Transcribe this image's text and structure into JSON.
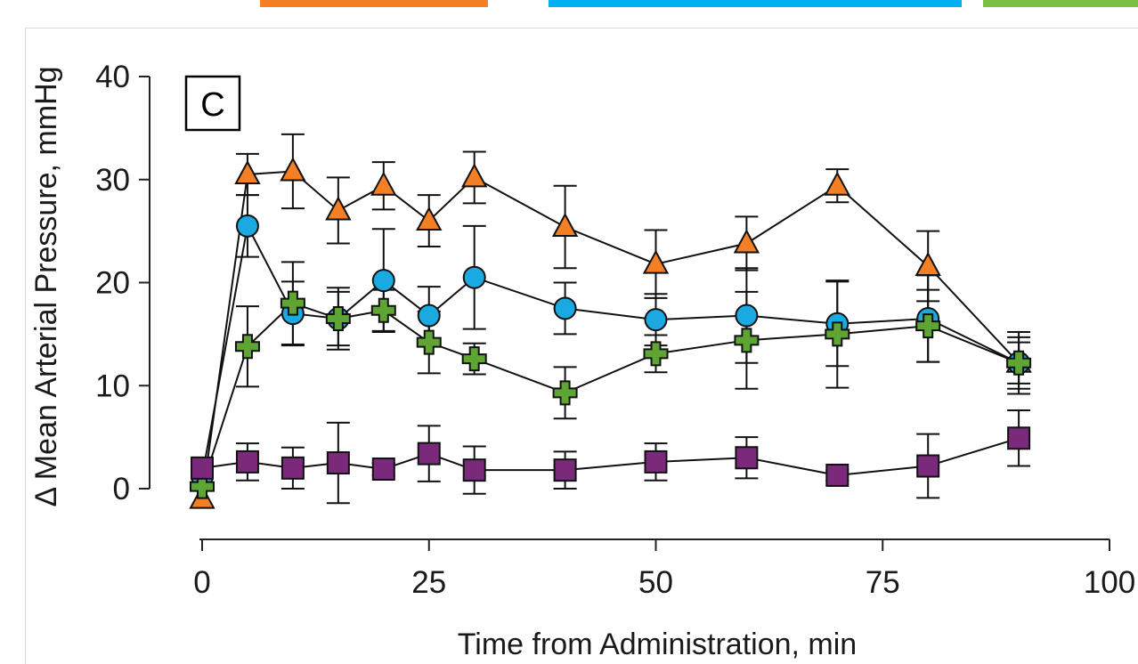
{
  "header_bars": {
    "colors": [
      "#f47f24",
      "#00b0f0",
      "#7ac143"
    ]
  },
  "chart_data": {
    "type": "line",
    "panel_label": "C",
    "xlabel": "Time from Administration, min",
    "ylabel": "Δ Mean Arterial Pressure, mmHg",
    "xlim": [
      0,
      100
    ],
    "ylim": [
      0,
      40
    ],
    "xticks": [
      0,
      25,
      50,
      75,
      100
    ],
    "yticks": [
      0,
      10,
      20,
      30,
      40
    ],
    "grid": false,
    "series": [
      {
        "marker": "triangle",
        "color": "#f47f24",
        "x": [
          0,
          5,
          10,
          15,
          20,
          25,
          30,
          40,
          50,
          60,
          70,
          80,
          90
        ],
        "y": [
          -1.0,
          30.5,
          30.8,
          27.0,
          29.4,
          26.0,
          30.2,
          25.4,
          21.8,
          23.8,
          29.4,
          21.6,
          12.2
        ],
        "err": [
          0,
          2.0,
          3.6,
          3.2,
          2.3,
          2.5,
          2.5,
          4.0,
          3.3,
          2.6,
          1.6,
          3.4,
          2.5
        ]
      },
      {
        "marker": "circle",
        "color": "#1ba9e1",
        "x": [
          0,
          5,
          10,
          15,
          20,
          25,
          30,
          40,
          50,
          60,
          70,
          80,
          90
        ],
        "y": [
          1.2,
          25.5,
          17.0,
          16.5,
          20.2,
          16.8,
          20.5,
          17.5,
          16.4,
          16.8,
          16.0,
          16.5,
          12.2
        ],
        "err": [
          0,
          3.0,
          3.1,
          2.6,
          5.0,
          2.8,
          5.0,
          2.5,
          2.5,
          4.6,
          4.1,
          4.2,
          2.0
        ]
      },
      {
        "marker": "cross",
        "color": "#5ea534",
        "x": [
          0,
          5,
          10,
          15,
          20,
          25,
          30,
          40,
          50,
          60,
          70,
          80,
          90
        ],
        "y": [
          0.2,
          13.8,
          18.0,
          16.5,
          17.3,
          14.2,
          12.6,
          9.3,
          13.1,
          14.4,
          15.0,
          15.8,
          12.2
        ],
        "err": [
          0,
          3.9,
          4.0,
          3.0,
          2.0,
          3.0,
          1.5,
          2.5,
          1.8,
          4.7,
          5.2,
          3.5,
          3.0
        ]
      },
      {
        "marker": "square",
        "color": "#7b2a7b",
        "x": [
          0,
          5,
          10,
          15,
          20,
          25,
          30,
          40,
          50,
          60,
          70,
          80,
          90
        ],
        "y": [
          2.0,
          2.6,
          2.0,
          2.5,
          1.9,
          3.4,
          1.8,
          1.8,
          2.6,
          3.0,
          1.3,
          2.2,
          4.9
        ],
        "err": [
          0,
          1.8,
          2.0,
          3.9,
          0.6,
          2.7,
          2.3,
          1.8,
          1.8,
          2.0,
          0.5,
          3.1,
          2.7
        ]
      }
    ]
  }
}
